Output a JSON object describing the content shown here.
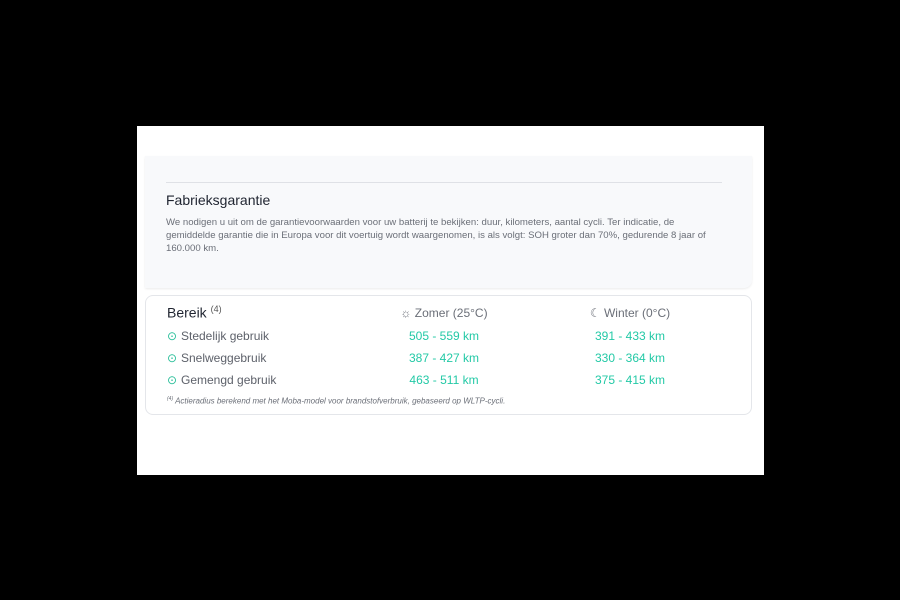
{
  "warranty": {
    "title": "Fabrieksgarantie",
    "text": "We nodigen u uit om de garantievoorwaarden voor uw batterij te bekijken: duur, kilometers, aantal cycli. Ter indicatie, de gemiddelde garantie die in Europa voor dit voertuig wordt waargenomen, is als volgt: SOH groter dan 70%, gedurende 8 jaar of 160.000 km."
  },
  "range": {
    "title": "Bereik",
    "footnote_marker": "(4)",
    "columns": [
      {
        "label": "Zomer (25°C)",
        "icon": "sun-icon"
      },
      {
        "label": "Winter (0°C)",
        "icon": "moon-icon"
      }
    ],
    "rows": [
      {
        "label": "Stedelijk gebruik",
        "summer": "505 - 559 km",
        "winter": "391 - 433 km"
      },
      {
        "label": "Snelweggebruik",
        "summer": "387 - 427 km",
        "winter": "330 - 364 km"
      },
      {
        "label": "Gemengd gebruik",
        "summer": "463 - 511 km",
        "winter": "375 - 415 km"
      }
    ],
    "footnote": "Actieradius berekend met het Moba-model voor brandstofverbruik, gebaseerd op WLTP-cycli."
  },
  "colors": {
    "accent": "#23c9a6",
    "text": "#1f2430",
    "muted": "#6b6f78"
  }
}
